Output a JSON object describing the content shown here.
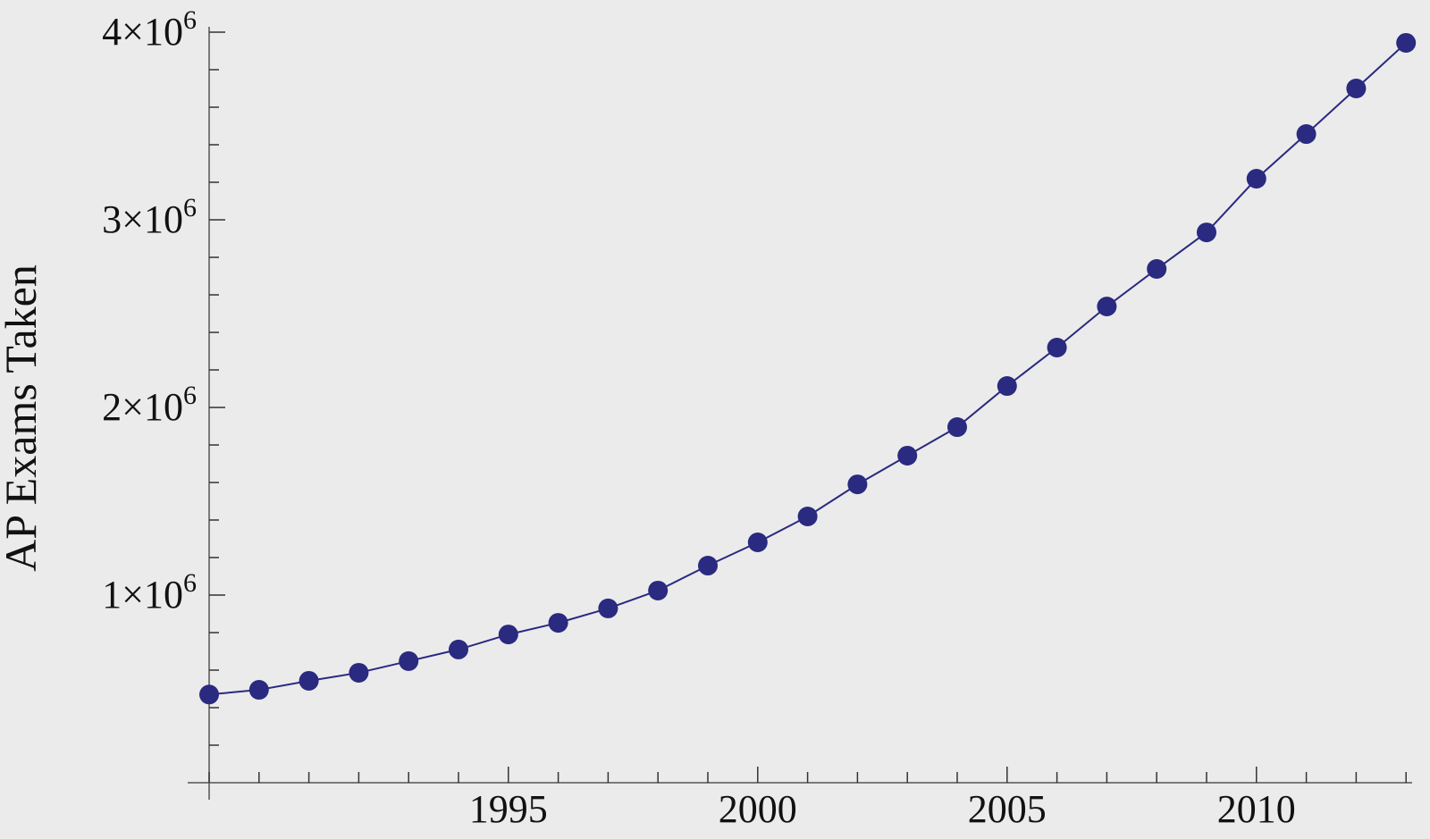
{
  "chart_data": {
    "type": "line",
    "title": "",
    "xlabel": "",
    "ylabel": "AP Exams Taken",
    "x": [
      1989,
      1990,
      1991,
      1992,
      1993,
      1994,
      1995,
      1996,
      1997,
      1998,
      1999,
      2000,
      2001,
      2002,
      2003,
      2004,
      2005,
      2006,
      2007,
      2008,
      2009,
      2010,
      2011,
      2012,
      2013
    ],
    "series": [
      {
        "name": "AP Exams Taken",
        "values": [
          470000,
          495000,
          543000,
          586000,
          648000,
          710000,
          790000,
          852000,
          929000,
          1024000,
          1157000,
          1281000,
          1419000,
          1590000,
          1743000,
          1895000,
          2114000,
          2319000,
          2538000,
          2738000,
          2933000,
          3219000,
          3457000,
          3700000,
          3943000
        ],
        "color": "#2a2a80",
        "marker": "circle",
        "joined": true
      }
    ],
    "xlim": [
      1989,
      2013
    ],
    "ylim": [
      0,
      4000000
    ],
    "x_ticks": {
      "major": [
        1995,
        2000,
        2005,
        2010
      ],
      "labels": [
        "1995",
        "2000",
        "2005",
        "2010"
      ],
      "minor_step": 1
    },
    "y_ticks": {
      "major": [
        1000000,
        2000000,
        3000000,
        4000000
      ],
      "labels": [
        {
          "mantissa": "1",
          "times": "×",
          "base": "10",
          "exp": "6"
        },
        {
          "mantissa": "2",
          "times": "×",
          "base": "10",
          "exp": "6"
        },
        {
          "mantissa": "3",
          "times": "×",
          "base": "10",
          "exp": "6"
        },
        {
          "mantissa": "4",
          "times": "×",
          "base": "10",
          "exp": "6"
        }
      ],
      "minor_step": 200000
    },
    "grid": false,
    "legend": null,
    "background": "#ebebeb",
    "axis_color": "#555555"
  }
}
